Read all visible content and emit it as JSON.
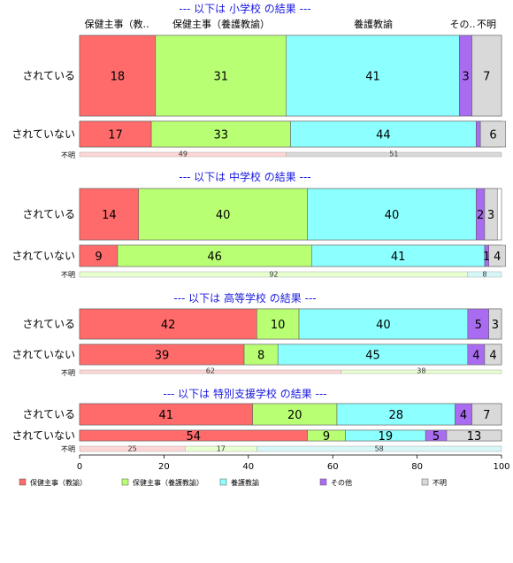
{
  "chart_data": {
    "type": "bar",
    "orientation": "horizontal",
    "stacked": true,
    "xlim": [
      0,
      100
    ],
    "x_ticks": [
      "0",
      "20",
      "40",
      "60",
      "80",
      "100"
    ],
    "column_headers": [
      "保健主事（教..",
      "保健主事（養護教諭）",
      "養護教諭",
      "その..",
      "不明"
    ],
    "legend": {
      "position": "bottom",
      "entries": [
        "保健主事（教諭）",
        "保健主事（養護教諭）",
        "養護教諭",
        "その他",
        "不明"
      ]
    },
    "colors": [
      "#ff6b6b",
      "#b9ff73",
      "#8cffff",
      "#a96cf0",
      "#d9d9d9"
    ],
    "sections": [
      {
        "title": "--- 以下は 小学校 の結果 ---",
        "rows": [
          {
            "label": "されている",
            "values": [
              18,
              31,
              41,
              3,
              7
            ]
          },
          {
            "label": "されていない",
            "values": [
              17,
              33,
              44,
              1,
              6
            ],
            "value_labels": [
              "17",
              "33",
              "44",
              "",
              "6"
            ]
          }
        ],
        "unknown": {
          "label": "不明",
          "values": [
            49,
            51
          ]
        }
      },
      {
        "title": "--- 以下は 中学校 の結果 ---",
        "rows": [
          {
            "label": "されている",
            "values": [
              14,
              40,
              40,
              2,
              3
            ]
          },
          {
            "label": "されていない",
            "values": [
              9,
              46,
              41,
              1,
              4
            ]
          }
        ],
        "unknown": {
          "label": "不明",
          "values": [
            92,
            8
          ]
        }
      },
      {
        "title": "--- 以下は 高等学校 の結果 ---",
        "rows": [
          {
            "label": "されている",
            "values": [
              42,
              10,
              40,
              5,
              3
            ]
          },
          {
            "label": "されていない",
            "values": [
              39,
              8,
              45,
              4,
              4
            ]
          }
        ],
        "unknown": {
          "label": "不明",
          "values": [
            62,
            38
          ]
        }
      },
      {
        "title": "--- 以下は 特別支援学校 の結果 ---",
        "rows": [
          {
            "label": "されている",
            "values": [
              41,
              20,
              28,
              4,
              7
            ]
          },
          {
            "label": "されていない",
            "values": [
              54,
              9,
              19,
              5,
              13
            ]
          }
        ],
        "unknown": {
          "label": "不明",
          "values": [
            25,
            17,
            58
          ]
        }
      }
    ]
  }
}
